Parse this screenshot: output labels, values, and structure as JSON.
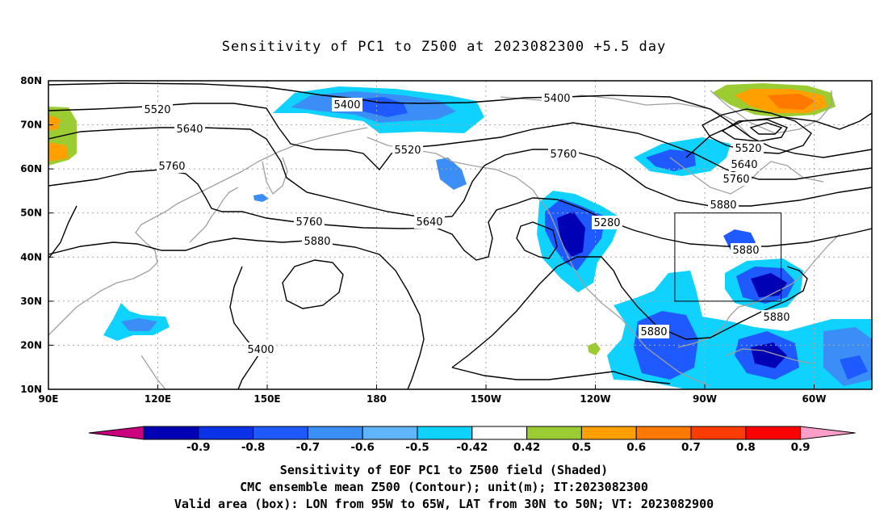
{
  "title": "Sensitivity of PC1 to Z500 at 2023082300 +5.5 day",
  "axes": {
    "lat_labels": [
      "80N",
      "70N",
      "60N",
      "50N",
      "40N",
      "30N",
      "20N",
      "10N"
    ],
    "lon_labels": [
      "90E",
      "120E",
      "150E",
      "180",
      "150W",
      "120W",
      "90W",
      "60W"
    ]
  },
  "contour_labels": [
    "5400",
    "5400",
    "5520",
    "5520",
    "5640",
    "5640",
    "5760",
    "5760",
    "5760",
    "5880",
    "5880",
    "5880",
    "5880",
    "5880",
    "5280",
    "5400",
    "5520",
    "5640",
    "5760"
  ],
  "colorbar": {
    "labels": [
      "-0.9",
      "-0.8",
      "-0.7",
      "-0.6",
      "-0.5",
      "-0.42",
      "0.42",
      "0.5",
      "0.6",
      "0.7",
      "0.8",
      "0.9"
    ],
    "colors": [
      "#c8007d",
      "#0000b4",
      "#0a32e6",
      "#1e5aff",
      "#3a8ef5",
      "#5fb4fa",
      "#0fd2ff",
      "#ffffff",
      "#9bcd32",
      "#ffa000",
      "#ff7800",
      "#ff3c00",
      "#ff0000",
      "#ff9ec8"
    ]
  },
  "shading_colors": {
    "c_09": "#0000b4",
    "c_08": "#0a32e6",
    "c_07": "#1e5aff",
    "c_06": "#3a8ef5",
    "c_05": "#0fd2ff",
    "p_05": "#9bcd32",
    "p_06": "#ffa000",
    "p_07": "#ff7800"
  },
  "captions": [
    "Sensitivity of EOF PC1 to Z500 field (Shaded)",
    "CMC ensemble mean Z500 (Contour); unit(m); IT:2023082300",
    "Valid area (box): LON from 95W to 65W, LAT from 30N to 50N; VT: 2023082900"
  ]
}
